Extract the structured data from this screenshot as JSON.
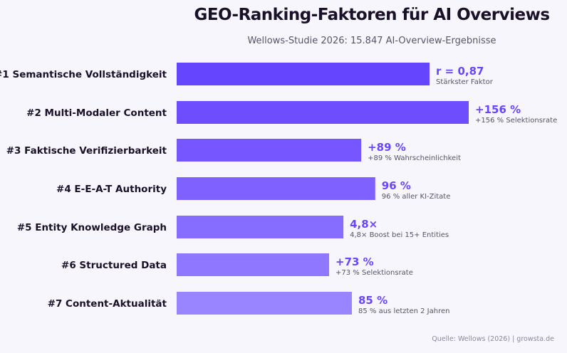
{
  "chart_data": {
    "type": "bar",
    "orientation": "horizontal",
    "title": "GEO-Ranking-Faktoren für AI Overviews",
    "subtitle": "Wellows-Studie 2026: 15.847 AI-Overview-Ergebnisse",
    "source": "Quelle: Wellows (2026) | growsta.de",
    "grid": false,
    "axes_visible": false,
    "value_color": "#6a45ff",
    "categories": [
      "#1  Semantische Vollständigkeit",
      "#2  Multi-Modaler Content",
      "#3  Faktische Verifizierbarkeit",
      "#4  E-E-A-T Authority",
      "#5  Entity Knowledge Graph",
      "#6  Structured Data",
      "#7  Content-Aktualität"
    ],
    "relative_bar_length": [
      0.866,
      1.0,
      0.632,
      0.68,
      0.571,
      0.522,
      0.6
    ],
    "value_labels": [
      "r = 0,87",
      "+156 %",
      "+89 %",
      "96 %",
      "4,8×",
      "+73 %",
      "85 %"
    ],
    "descriptions": [
      "Stärkster Faktor",
      "+156 % Selektionsrate",
      "+89 % Wahrscheinlichkeit",
      "96 % aller KI-Zitate",
      "4,8× Boost bei 15+ Entities",
      "+73 % Selektionsrate",
      "85 % aus letzten 2 Jahren"
    ],
    "bar_colors": [
      "#6645ff",
      "#6e4dff",
      "#7657ff",
      "#7e61ff",
      "#876dff",
      "#8f78ff",
      "#9985ff"
    ]
  }
}
